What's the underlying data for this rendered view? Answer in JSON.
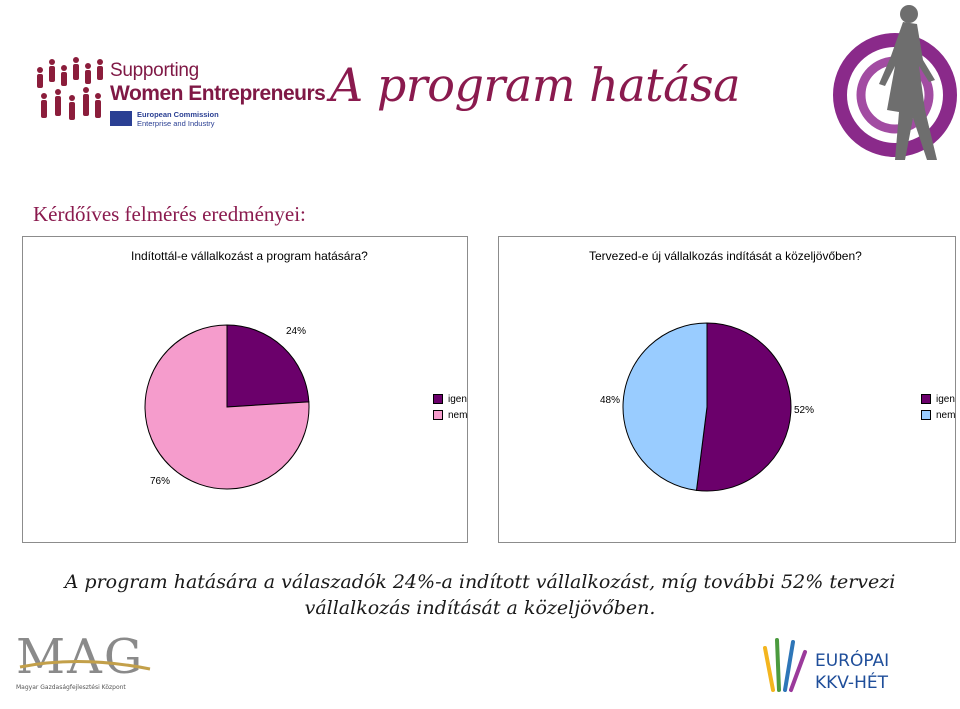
{
  "header": {
    "logo_left": {
      "line1": "Supporting",
      "line2": "Women Entrepreneurs",
      "sub1": "European Commission",
      "sub2": "Enterprise and Industry"
    },
    "title": "A program hatása"
  },
  "subtitle": "Kérdőíves felmérés eredményei:",
  "colors": {
    "igen": "#6b006b",
    "nem_chart1": "#f59ccc",
    "nem_chart2": "#99ccff",
    "accent": "#8a1a4e"
  },
  "chart_data": [
    {
      "type": "pie",
      "title": "Indítottál-e vállalkozást a program hatására?",
      "categories": [
        "igen",
        "nem"
      ],
      "values": [
        24,
        76
      ],
      "labels": [
        "24%",
        "76%"
      ],
      "legend": "right"
    },
    {
      "type": "pie",
      "title": "Tervezed-e új vállalkozás indítását a közeljövőben?",
      "categories": [
        "igen",
        "nem"
      ],
      "values": [
        52,
        48
      ],
      "labels": [
        "52%",
        "48%"
      ],
      "legend": "right"
    }
  ],
  "conclusion": {
    "line1": "A program hatására a válaszadók 24%-a indított vállalkozást, míg további 52% tervezi",
    "line2": "vállalkozás indítását a közeljövőben."
  },
  "footer": {
    "mag": {
      "name": "MAG",
      "sub": "Magyar Gazdaságfejlesztési Központ"
    },
    "eu_week": {
      "line1": "EURÓPAI",
      "line2": "KKV-HÉT"
    }
  }
}
